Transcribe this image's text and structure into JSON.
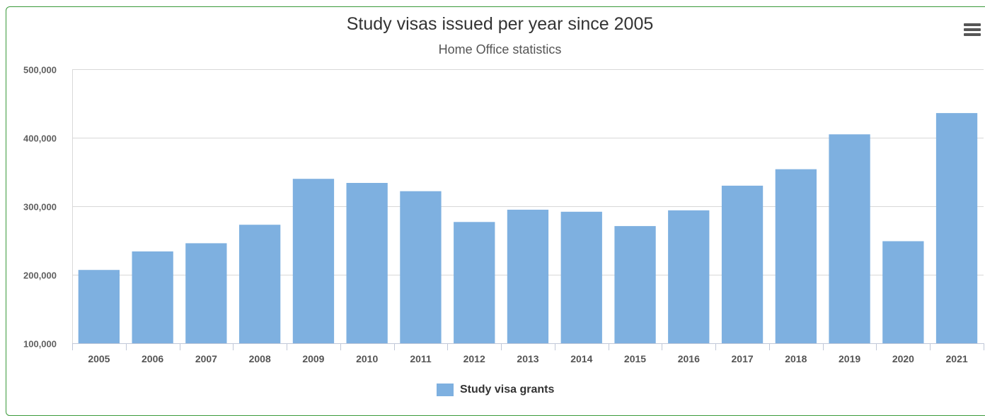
{
  "chart_data": {
    "type": "bar",
    "title": "Study visas issued per year since 2005",
    "subtitle": "Home Office statistics",
    "categories": [
      "2005",
      "2006",
      "2007",
      "2008",
      "2009",
      "2010",
      "2011",
      "2012",
      "2013",
      "2014",
      "2015",
      "2016",
      "2017",
      "2018",
      "2019",
      "2020",
      "2021"
    ],
    "series": [
      {
        "name": "Study visa grants",
        "color": "#7eb0e0",
        "values": [
          207000,
          234000,
          246000,
          273000,
          340000,
          334000,
          322000,
          277000,
          295000,
          292000,
          271000,
          294000,
          330000,
          354000,
          405000,
          249000,
          436000
        ]
      }
    ],
    "ylim": [
      100000,
      500000
    ],
    "yticks": [
      100000,
      200000,
      300000,
      400000,
      500000
    ],
    "ytick_labels": [
      "100,000",
      "200,000",
      "300,000",
      "400,000",
      "500,000"
    ],
    "grid": true,
    "legend_position": "bottom-center"
  },
  "menu": {
    "icon": "hamburger-menu-icon"
  }
}
